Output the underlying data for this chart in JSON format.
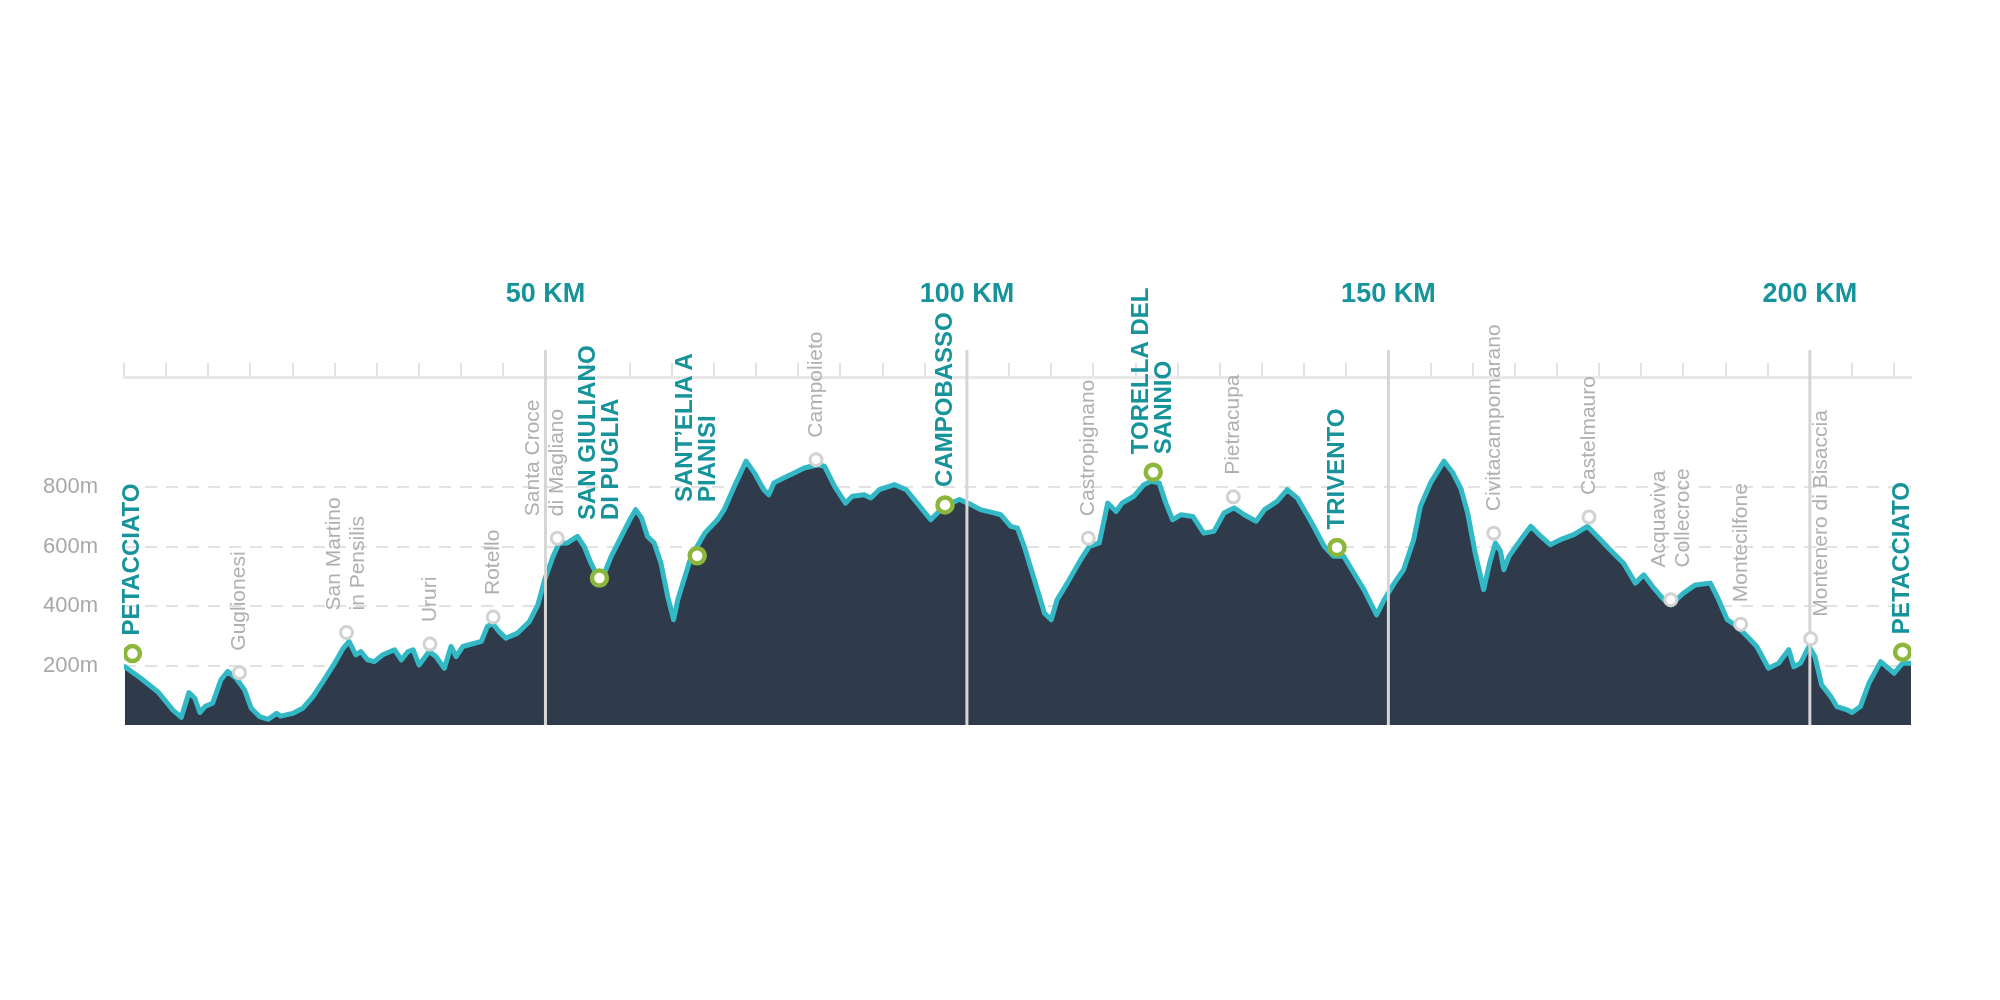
{
  "chart_data": {
    "type": "area",
    "x": [
      0.1,
      2.0,
      4.0,
      5.8,
      6.8,
      7.7,
      8.4,
      9.0,
      9.6,
      10.5,
      11.5,
      12.3,
      13.3,
      14.3,
      15.1,
      16.1,
      17.1,
      18.1,
      18.6,
      20.0,
      21.2,
      22.4,
      23.6,
      25.0,
      26.0,
      26.7,
      27.5,
      28.1,
      28.9,
      29.7,
      30.7,
      32.1,
      32.9,
      33.7,
      34.3,
      35.0,
      36.2,
      37.0,
      38.0,
      38.8,
      39.4,
      40.2,
      42.4,
      43.1,
      43.7,
      44.5,
      45.3,
      46.7,
      48.1,
      49.1,
      49.9,
      50.9,
      51.6,
      52.6,
      53.8,
      54.6,
      55.4,
      56.2,
      57.0,
      57.8,
      59.0,
      60.0,
      60.7,
      61.4,
      62.1,
      62.9,
      63.7,
      64.5,
      65.2,
      65.7,
      66.3,
      67.3,
      68.9,
      70.4,
      71.2,
      72.4,
      73.8,
      74.8,
      75.9,
      76.5,
      77.1,
      78.3,
      79.5,
      80.7,
      82.3,
      83.1,
      84.3,
      85.6,
      86.4,
      87.8,
      88.6,
      89.6,
      91.4,
      92.8,
      94.1,
      95.7,
      96.5,
      97.3,
      99.1,
      100.5,
      101.6,
      103.2,
      104.0,
      105.2,
      106.0,
      106.8,
      108.0,
      109.2,
      110.0,
      110.7,
      111.9,
      113.5,
      114.5,
      115.7,
      116.7,
      117.7,
      118.4,
      119.8,
      121.0,
      121.8,
      122.8,
      123.6,
      124.4,
      125.4,
      126.8,
      128.1,
      129.3,
      130.5,
      131.7,
      132.9,
      134.3,
      135.3,
      136.8,
      138.0,
      139.2,
      140.8,
      142.4,
      143.5,
      144.7,
      145.9,
      147.1,
      148.6,
      149.5,
      150.7,
      151.8,
      153.0,
      153.8,
      155.0,
      156.6,
      157.6,
      158.6,
      159.4,
      160.3,
      161.3,
      162.0,
      162.7,
      163.3,
      163.7,
      164.3,
      165.7,
      166.9,
      168.1,
      169.2,
      170.4,
      172.0,
      173.6,
      174.8,
      176.3,
      177.9,
      179.3,
      180.3,
      181.5,
      182.7,
      183.5,
      185.0,
      186.4,
      188.2,
      189.0,
      190.2,
      191.4,
      192.6,
      193.7,
      195.1,
      196.3,
      197.5,
      198.1,
      198.9,
      199.9,
      200.6,
      201.4,
      202.5,
      203.2,
      204.4,
      205.0,
      206.0,
      207.0,
      208.4,
      210.0,
      211.0,
      212.0
    ],
    "series": [
      {
        "color": "#2f3a4b",
        "values": [
          196,
          157,
          112,
          50,
          26,
          109,
          90,
          42,
          62,
          73,
          152,
          180,
          157,
          118,
          56,
          28,
          19,
          39,
          30,
          39,
          56,
          95,
          146,
          208,
          258,
          281,
          236,
          247,
          219,
          213,
          236,
          253,
          219,
          247,
          253,
          202,
          247,
          230,
          191,
          264,
          230,
          264,
          281,
          331,
          342,
          314,
          292,
          309,
          348,
          404,
          488,
          567,
          610,
          612,
          634,
          600,
          544,
          499,
          511,
          567,
          634,
          690,
          724,
          696,
          634,
          612,
          544,
          432,
          354,
          421,
          477,
          567,
          645,
          690,
          724,
          802,
          887,
          847,
          791,
          774,
          814,
          831,
          847,
          864,
          875,
          870,
          802,
          746,
          769,
          774,
          763,
          791,
          808,
          791,
          746,
          690,
          713,
          735,
          758,
          741,
          724,
          713,
          707,
          668,
          662,
          600,
          488,
          376,
          354,
          421,
          477,
          556,
          600,
          612,
          746,
          718,
          746,
          769,
          808,
          819,
          814,
          746,
          690,
          707,
          701,
          645,
          651,
          713,
          730,
          707,
          685,
          724,
          752,
          791,
          763,
          685,
          600,
          567,
          567,
          511,
          455,
          370,
          421,
          477,
          522,
          623,
          735,
          814,
          887,
          850,
          795,
          713,
          578,
          455,
          544,
          612,
          584,
          522,
          567,
          623,
          668,
          634,
          606,
          623,
          640,
          668,
          634,
          589,
          544,
          477,
          505,
          460,
          421,
          404,
          443,
          471,
          477,
          432,
          354,
          331,
          297,
          264,
          191,
          208,
          253,
          196,
          208,
          264,
          230,
          135,
          95,
          62,
          51,
          42,
          62,
          140,
          213,
          174,
          208,
          208
        ]
      },
      {
        "type": "scatter",
        "marker": "circle",
        "color": "#8db63c",
        "x": [
          1.0,
          56.4,
          68.0,
          97.4,
          122.1,
          143.9,
          211.0
        ],
        "values": [
          240,
          494,
          569,
          740,
          850,
          597,
          245
        ]
      },
      {
        "type": "scatter",
        "marker": "circle",
        "color": "#d2d2d2",
        "x": [
          13.7,
          26.4,
          36.3,
          43.8,
          51.4,
          82.1,
          114.4,
          131.6,
          162.5,
          173.8,
          183.5,
          191.8,
          200.1
        ],
        "values": [
          176,
          311,
          272,
          363,
          628,
          892,
          628,
          767,
          645,
          699,
          421,
          339,
          290
        ]
      }
    ],
    "xlim": [
      0,
      212
    ],
    "xticks": [
      {
        "value": 0,
        "label": null
      },
      {
        "value": 5,
        "label": null
      },
      {
        "value": 10,
        "label": null
      },
      {
        "value": 15,
        "label": null
      },
      {
        "value": 20,
        "label": null
      },
      {
        "value": 25,
        "label": null
      },
      {
        "value": 30,
        "label": null
      },
      {
        "value": 35,
        "label": null
      },
      {
        "value": 40,
        "label": null
      },
      {
        "value": 45,
        "label": null
      },
      {
        "value": 50,
        "label": "50 KM"
      },
      {
        "value": 55,
        "label": null
      },
      {
        "value": 60,
        "label": null
      },
      {
        "value": 65,
        "label": null
      },
      {
        "value": 70,
        "label": null
      },
      {
        "value": 75,
        "label": null
      },
      {
        "value": 80,
        "label": null
      },
      {
        "value": 85,
        "label": null
      },
      {
        "value": 90,
        "label": null
      },
      {
        "value": 95,
        "label": null
      },
      {
        "value": 100,
        "label": "100 KM"
      },
      {
        "value": 105,
        "label": null
      },
      {
        "value": 110,
        "label": null
      },
      {
        "value": 115,
        "label": null
      },
      {
        "value": 120,
        "label": null
      },
      {
        "value": 125,
        "label": null
      },
      {
        "value": 130,
        "label": null
      },
      {
        "value": 135,
        "label": null
      },
      {
        "value": 140,
        "label": null
      },
      {
        "value": 145,
        "label": null
      },
      {
        "value": 150,
        "label": "150 KM"
      },
      {
        "value": 155,
        "label": null
      },
      {
        "value": 160,
        "label": null
      },
      {
        "value": 165,
        "label": null
      },
      {
        "value": 170,
        "label": null
      },
      {
        "value": 175,
        "label": null
      },
      {
        "value": 180,
        "label": null
      },
      {
        "value": 185,
        "label": null
      },
      {
        "value": 190,
        "label": null
      },
      {
        "value": 195,
        "label": null
      },
      {
        "value": 200,
        "label": "200 KM"
      },
      {
        "value": 205,
        "label": null
      },
      {
        "value": 210,
        "label": null
      }
    ],
    "ylim": [
      0,
      1170
    ],
    "yticks": [
      {
        "value": 200,
        "label": "200m"
      },
      {
        "value": 400,
        "label": "400m"
      },
      {
        "value": 600,
        "label": "600m"
      },
      {
        "value": 800,
        "label": "800m"
      }
    ],
    "grid": "y",
    "ref_lines": [
      {
        "axis": "x",
        "value": 50,
        "color": "#d6d6d6"
      },
      {
        "axis": "x",
        "value": 100,
        "color": "#d6d6d6"
      },
      {
        "axis": "x",
        "value": 150,
        "color": "#d6d6d6"
      },
      {
        "axis": "x",
        "value": 200,
        "color": "#d6d6d6"
      }
    ],
    "annotations": [
      {
        "text": "PETACCIATO",
        "x": 1.0,
        "y": 240
      },
      {
        "text": "Guglionesi",
        "x": 13.7,
        "y": 176
      },
      {
        "text": "San Martino\nin Pensilis",
        "x": 26.4,
        "y": 311
      },
      {
        "text": "Ururi",
        "x": 36.3,
        "y": 272
      },
      {
        "text": "Rotello",
        "x": 43.8,
        "y": 363
      },
      {
        "text": "Santa Croce\ndi Magliano",
        "x": 51.4,
        "y": 628
      },
      {
        "text": "SAN GIULIANO\nDI PUGLIA",
        "x": 56.4,
        "y": 494
      },
      {
        "text": "SANT’ELIA A\nPIANISI",
        "x": 68.0,
        "y": 569
      },
      {
        "text": "Campolieto",
        "x": 82.1,
        "y": 892
      },
      {
        "text": "CAMPOBASSO",
        "x": 97.4,
        "y": 740
      },
      {
        "text": "Castropignano",
        "x": 114.4,
        "y": 628
      },
      {
        "text": "TORELLA DEL\nSANNIO",
        "x": 122.1,
        "y": 850
      },
      {
        "text": "Pietracupa",
        "x": 131.6,
        "y": 767
      },
      {
        "text": "TRIVENTO",
        "x": 143.9,
        "y": 597
      },
      {
        "text": "Civitacampomarano",
        "x": 162.5,
        "y": 645
      },
      {
        "text": "Castelmauro",
        "x": 173.8,
        "y": 699
      },
      {
        "text": "Acquaviva\nCollecroce",
        "x": 183.5,
        "y": 421
      },
      {
        "text": "Montecilfone",
        "x": 191.8,
        "y": 339
      },
      {
        "text": "Montenero di Bisaccia",
        "x": 200.1,
        "y": 290
      },
      {
        "text": "PETACCIATO",
        "x": 211.0,
        "y": 245
      }
    ]
  }
}
